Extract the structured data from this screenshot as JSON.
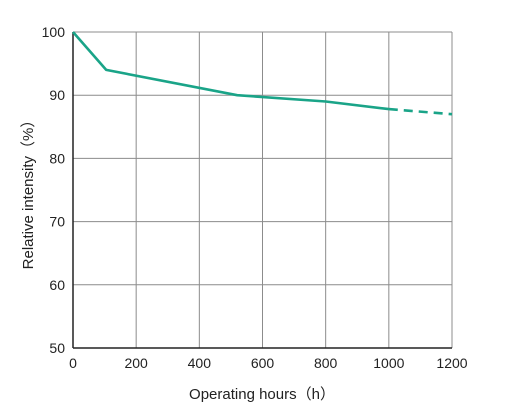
{
  "chart_data": {
    "type": "line",
    "title": "",
    "xlabel": "Operating hours（h）",
    "ylabel": "Relative intensity（%）",
    "xlim": [
      0,
      1200
    ],
    "ylim": [
      50,
      100
    ],
    "xticks": [
      0,
      200,
      400,
      600,
      800,
      1000,
      1200
    ],
    "yticks": [
      50,
      60,
      70,
      80,
      90,
      100
    ],
    "grid": true,
    "legend": "none",
    "series": [
      {
        "color": "#1aa488",
        "style": "solid",
        "points": [
          [
            0,
            100
          ],
          [
            105,
            94
          ],
          [
            520,
            90
          ],
          [
            800,
            89
          ],
          [
            1000,
            87.8
          ]
        ]
      },
      {
        "color": "#1aa488",
        "style": "dashed",
        "points": [
          [
            1000,
            87.8
          ],
          [
            1200,
            87
          ]
        ]
      }
    ]
  }
}
